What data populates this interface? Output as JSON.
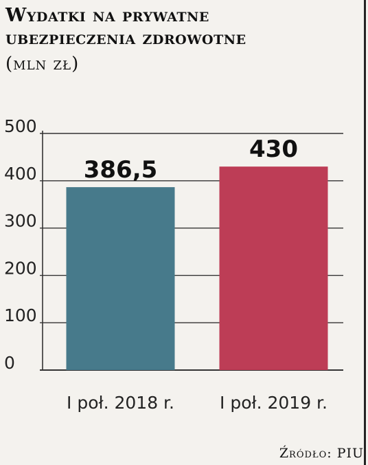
{
  "chart_data": {
    "type": "bar",
    "title_lines": [
      "Wydatki na prywatne",
      "ubezpieczenia zdrowotne"
    ],
    "subtitle": "(mln zł)",
    "categories": [
      "I poł. 2018 r.",
      "I poł. 2019 r."
    ],
    "values": [
      386.5,
      430
    ],
    "value_labels": [
      "386,5",
      "430"
    ],
    "bar_colors": [
      "#477a8b",
      "#bd3d56"
    ],
    "yticks": [
      0,
      100,
      200,
      300,
      400,
      500
    ],
    "ylim": [
      0,
      500
    ],
    "grid": true,
    "xlabel": "",
    "ylabel": "",
    "source": "Źródło: PIU"
  }
}
